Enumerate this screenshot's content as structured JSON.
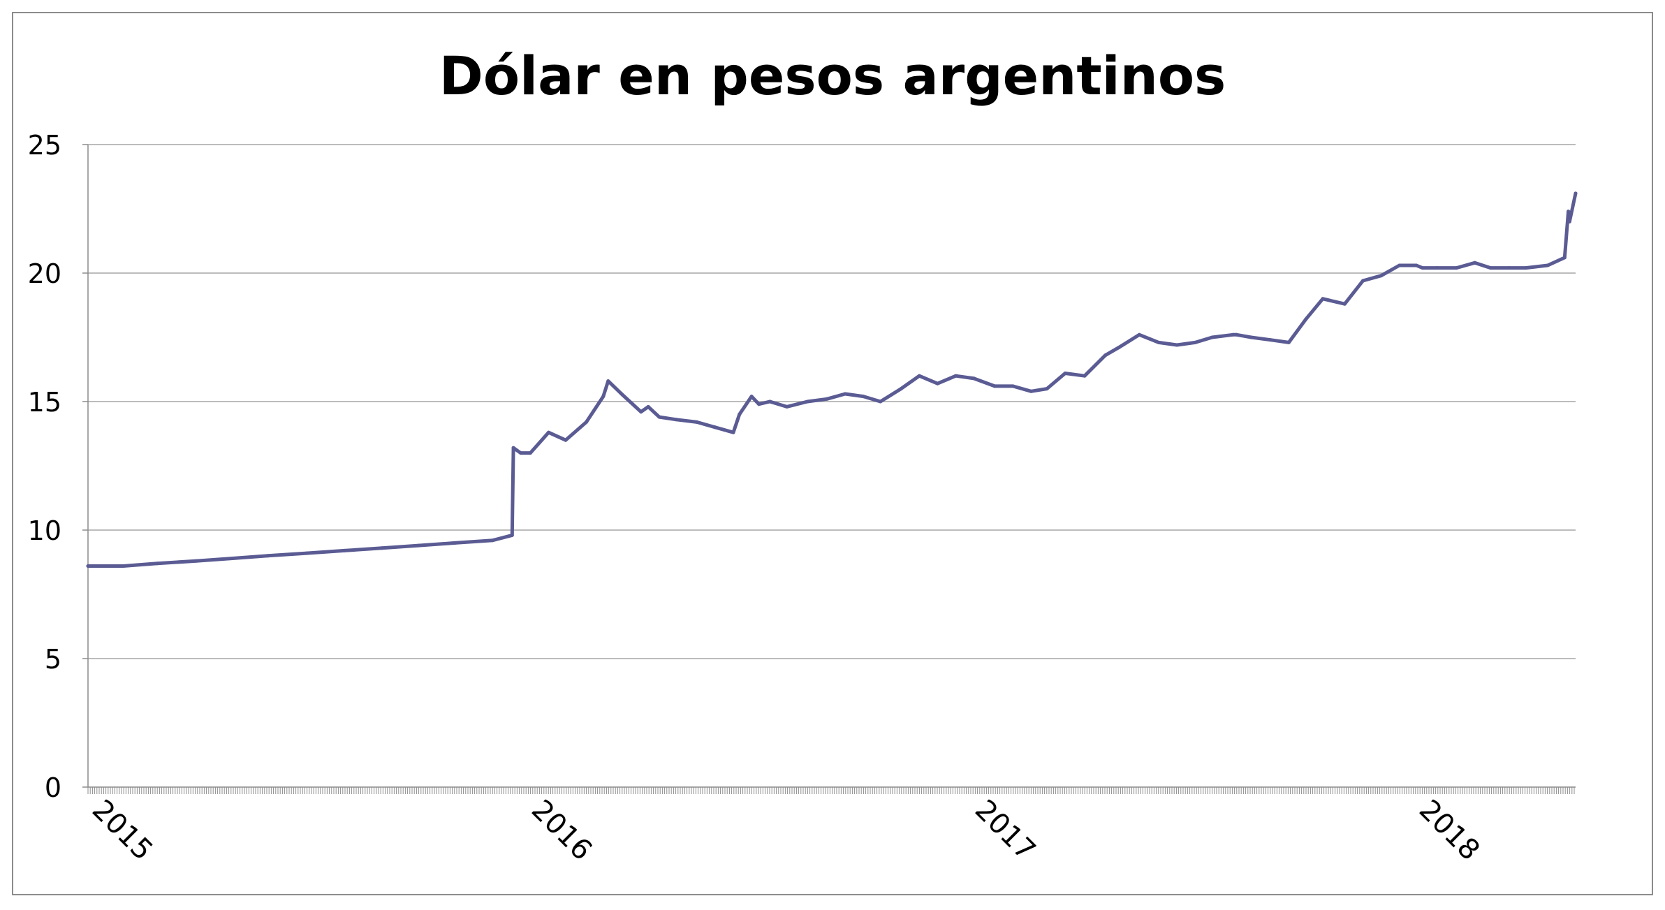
{
  "chart_data": {
    "type": "line",
    "title": "Dólar en pesos argentinos",
    "xlabel": "",
    "ylabel": "",
    "y_ticks": [
      "0",
      "5",
      "10",
      "15",
      "20",
      "25"
    ],
    "x_ticks": [
      "2015",
      "2016",
      "2017",
      "2018"
    ],
    "ylim": [
      0,
      25
    ],
    "grid": true,
    "legend": "none",
    "colors": {
      "series": "#5b5b94",
      "grid": "#a6a6a6",
      "axis": "#8c8c8c",
      "frame": "#8c8c8c",
      "text": "#000000"
    },
    "series": [
      {
        "x": [
          "2015-01-01",
          "2015-01-30",
          "2015-02-27",
          "2015-03-31",
          "2015-04-30",
          "2015-05-29",
          "2015-06-30",
          "2015-07-31",
          "2015-08-31",
          "2015-09-30",
          "2015-10-30",
          "2015-11-30",
          "2015-12-16",
          "2015-12-17",
          "2015-12-23",
          "2015-12-31",
          "2016-01-15",
          "2016-01-29",
          "2016-02-15",
          "2016-02-29",
          "2016-03-04",
          "2016-03-15",
          "2016-03-31",
          "2016-04-06",
          "2016-04-15",
          "2016-04-29",
          "2016-05-16",
          "2016-05-31",
          "2016-06-15",
          "2016-06-20",
          "2016-06-30",
          "2016-07-06",
          "2016-07-15",
          "2016-07-29",
          "2016-08-15",
          "2016-08-31",
          "2016-09-15",
          "2016-09-30",
          "2016-10-14",
          "2016-10-31",
          "2016-11-15",
          "2016-11-30",
          "2016-12-15",
          "2016-12-30",
          "2017-01-16",
          "2017-01-31",
          "2017-02-15",
          "2017-02-28",
          "2017-03-15",
          "2017-03-31",
          "2017-04-17",
          "2017-04-28",
          "2017-05-15",
          "2017-05-31",
          "2017-06-15",
          "2017-06-30",
          "2017-07-14",
          "2017-07-31",
          "2017-08-03",
          "2017-08-15",
          "2017-08-31",
          "2017-09-15",
          "2017-09-29",
          "2017-10-13",
          "2017-10-31",
          "2017-11-15",
          "2017-11-30",
          "2017-12-15",
          "2017-12-29",
          "2018-01-03",
          "2018-01-15",
          "2018-01-31",
          "2018-02-15",
          "2018-02-28",
          "2018-03-15",
          "2018-03-29",
          "2018-04-16",
          "2018-04-30",
          "2018-05-03",
          "2018-05-04",
          "2018-05-09"
        ],
        "y": [
          8.6,
          8.6,
          8.7,
          8.8,
          8.9,
          9.0,
          9.1,
          9.2,
          9.3,
          9.4,
          9.5,
          9.6,
          9.8,
          13.2,
          13.0,
          13.0,
          13.8,
          13.5,
          14.2,
          15.2,
          15.8,
          15.3,
          14.6,
          14.8,
          14.4,
          14.3,
          14.2,
          14.0,
          13.8,
          14.5,
          15.2,
          14.9,
          15.0,
          14.8,
          15.0,
          15.1,
          15.3,
          15.2,
          15.0,
          15.5,
          16.0,
          15.7,
          16.0,
          15.9,
          15.6,
          15.6,
          15.4,
          15.5,
          16.1,
          16.0,
          16.8,
          17.1,
          17.6,
          17.3,
          17.2,
          17.3,
          17.5,
          17.6,
          17.6,
          17.5,
          17.4,
          17.3,
          18.2,
          19.0,
          18.8,
          19.7,
          19.9,
          20.3,
          20.3,
          20.2,
          20.2,
          20.2,
          20.4,
          20.2,
          20.2,
          20.2,
          20.3,
          20.6,
          22.4,
          22.0,
          23.1
        ]
      }
    ]
  }
}
